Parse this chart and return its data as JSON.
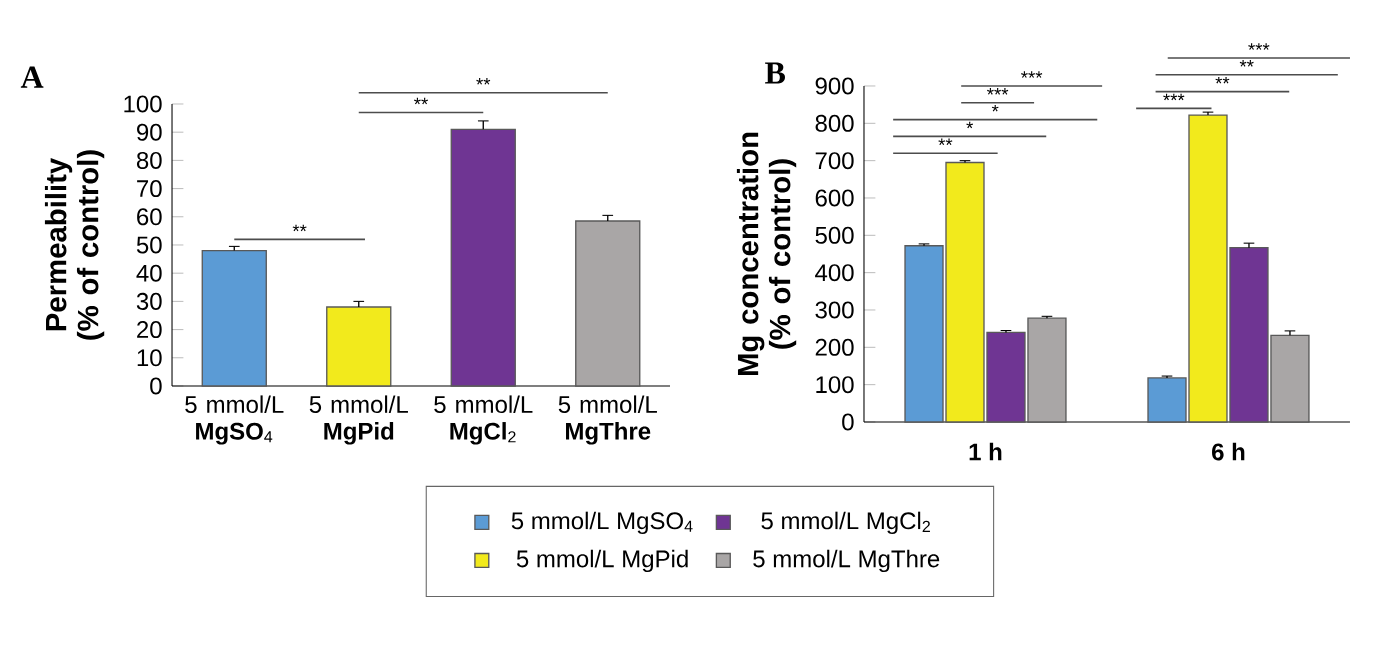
{
  "chart_data": [
    {
      "type": "bar",
      "title": "A",
      "ylabel": "Permeability (% of control)",
      "categories": [
        "5 mmol/L **MgSO**$_{4}$",
        "5 mmol/L **MgPid**",
        "5 mmol/L **MgCl**$_{2}$",
        "5 mmol/L **MgThre**"
      ],
      "values": [
        48,
        28,
        91,
        58.5
      ],
      "errors": [
        1.5,
        2,
        3,
        2
      ],
      "colors": [
        "#5b9bd5",
        "#f2ea1c",
        "#6f3593",
        "#a9a6a6"
      ],
      "ylim": [
        0,
        100
      ],
      "yticks": [
        0,
        10,
        20,
        30,
        40,
        50,
        60,
        70,
        80,
        90,
        100
      ],
      "annotations": [
        "**",
        "**",
        "**"
      ],
      "grid": false,
      "legend": false
    },
    {
      "type": "bar",
      "title": "B",
      "ylabel": "Mg concentration (% of control)",
      "categories": [
        "1 h",
        "6 h"
      ],
      "series": [
        {
          "name": "5 mmol/L MgSO$_{4}$",
          "color": "#5b9bd5",
          "values": [
            472,
            118
          ],
          "errors": [
            5,
            5
          ]
        },
        {
          "name": "5 mmol/L MgPid",
          "color": "#f2ea1c",
          "values": [
            695,
            822
          ],
          "errors": [
            5,
            8
          ]
        },
        {
          "name": "5 mmol/L MgCl$_{2}$",
          "color": "#6f3593",
          "values": [
            240,
            467
          ],
          "errors": [
            5,
            12
          ]
        },
        {
          "name": "5 mmol/L MgThre",
          "color": "#a9a6a6",
          "values": [
            278,
            232
          ],
          "errors": [
            5,
            12
          ]
        }
      ],
      "ylim": [
        0,
        900
      ],
      "yticks": [
        0,
        100,
        200,
        300,
        400,
        500,
        600,
        700,
        800,
        900
      ],
      "annotations": [
        "**",
        "*",
        "*",
        "***",
        "***",
        "***",
        "**",
        "**",
        "***"
      ],
      "grid": false,
      "legend": "bottom"
    }
  ]
}
